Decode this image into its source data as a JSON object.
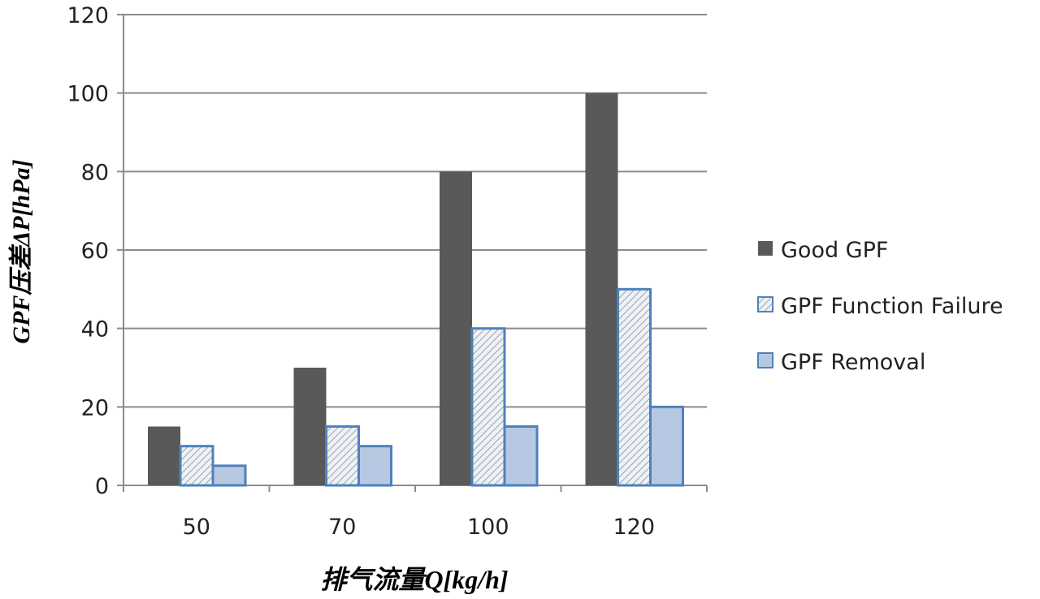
{
  "chart_data": {
    "type": "bar",
    "title": "",
    "xlabel": "排气流量Q[kg/h]",
    "ylabel": "GPF压差ΔP[hPa]",
    "categories": [
      "50",
      "70",
      "100",
      "120"
    ],
    "ylim": [
      0,
      120
    ],
    "yticks": [
      0,
      20,
      40,
      60,
      80,
      100,
      120
    ],
    "grid": true,
    "legend": "right",
    "series": [
      {
        "name": "Good GPF",
        "values": [
          15,
          30,
          80,
          100
        ],
        "color": "#595959",
        "pattern": "solid"
      },
      {
        "name": "GPF Function Failure",
        "values": [
          10,
          15,
          40,
          50
        ],
        "color": "#dfe6ee",
        "pattern": "diagonal-hatch"
      },
      {
        "name": "GPF Removal",
        "values": [
          5,
          10,
          15,
          20
        ],
        "color": "#b7c9e2",
        "pattern": "light-fill"
      }
    ],
    "border_color": "#4f81bd"
  }
}
